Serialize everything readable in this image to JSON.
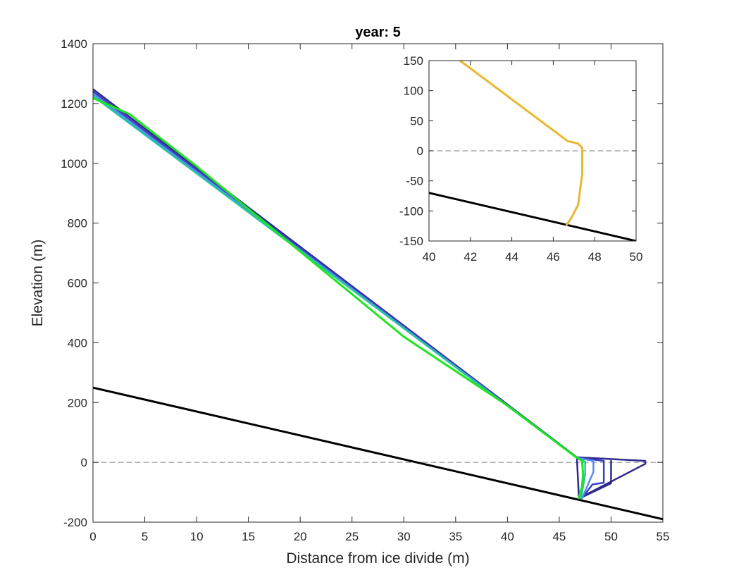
{
  "chart_data": [
    {
      "type": "line",
      "title": "year: 5",
      "xlabel": "Distance from ice divide (m)",
      "ylabel": "Elevation (m)",
      "xlim": [
        0,
        55
      ],
      "ylim": [
        -200,
        1400
      ],
      "xticks": [
        0,
        5,
        10,
        15,
        20,
        25,
        30,
        35,
        40,
        45,
        50,
        55
      ],
      "yticks": [
        -200,
        0,
        200,
        400,
        600,
        800,
        1000,
        1200,
        1400
      ],
      "grid": false,
      "colors": {
        "bed": "#000000",
        "sea_level": "#999999",
        "series_dark": "#2e2a8c",
        "series_mid": "#3a3fc4",
        "series_light": "#5a8cf0",
        "series_cyan": "#22c8a0",
        "series_green": "#1ee61e"
      },
      "series": [
        {
          "role": "sea-level",
          "color": "#999999",
          "dashed": true,
          "x": [
            0,
            55
          ],
          "y": [
            0,
            0
          ]
        },
        {
          "role": "bed",
          "color": "#000000",
          "width": 3,
          "x": [
            0,
            55
          ],
          "y": [
            250,
            -190
          ]
        },
        {
          "role": "profile",
          "color": "#2e2a8c",
          "width": 2.5,
          "x": [
            0,
            46.7,
            53.3,
            53.3,
            46.9,
            46.7
          ],
          "y": [
            1248,
            17,
            5,
            -5,
            -120,
            17
          ]
        },
        {
          "role": "profile-front",
          "color": "#2e2a8c",
          "width": 2.5,
          "x": [
            50,
            50,
            47
          ],
          "y": [
            5,
            -70,
            -120
          ]
        },
        {
          "role": "profile",
          "color": "#3a3fc4",
          "width": 2.5,
          "x": [
            0,
            46.7,
            49.3,
            49.3,
            48.2,
            47.2
          ],
          "y": [
            1240,
            16,
            5,
            -68,
            -74,
            -120
          ]
        },
        {
          "role": "profile",
          "color": "#5a8cf0",
          "width": 2.5,
          "x": [
            0,
            46.7,
            48.3,
            48.3,
            47.2
          ],
          "y": [
            1232,
            15,
            5,
            -32,
            -120
          ]
        },
        {
          "role": "profile",
          "color": "#22c8a0",
          "width": 2.5,
          "x": [
            0,
            46.7,
            47.5,
            47.5,
            47.1
          ],
          "y": [
            1225,
            15,
            2,
            -40,
            -120
          ]
        },
        {
          "role": "profile",
          "color": "#1ee61e",
          "width": 3,
          "x": [
            0,
            3.5,
            10,
            20,
            30,
            40,
            46.6,
            47.2,
            47.3,
            47.2,
            46.9
          ],
          "y": [
            1218,
            1165,
            990,
            705,
            420,
            190,
            18,
            5,
            -40,
            -80,
            -120
          ]
        }
      ]
    },
    {
      "type": "line",
      "title": "",
      "xlim": [
        40,
        50
      ],
      "ylim": [
        -150,
        150
      ],
      "xticks": [
        40,
        42,
        44,
        46,
        48,
        50
      ],
      "yticks": [
        -150,
        -100,
        -50,
        0,
        50,
        100,
        150
      ],
      "grid": false,
      "series": [
        {
          "role": "sea-level",
          "color": "#999999",
          "dashed": true,
          "x": [
            40,
            50
          ],
          "y": [
            0,
            0
          ]
        },
        {
          "role": "bed",
          "color": "#000000",
          "width": 3,
          "x": [
            40,
            50
          ],
          "y": [
            -70,
            -150
          ]
        },
        {
          "role": "profile",
          "color": "#e8b830",
          "width": 3,
          "x": [
            41.5,
            46.7,
            47.2,
            47.4,
            47.4,
            47.2,
            46.9,
            46.65
          ],
          "y": [
            150,
            16,
            12,
            5,
            -38,
            -90,
            -110,
            -123
          ]
        }
      ]
    }
  ]
}
